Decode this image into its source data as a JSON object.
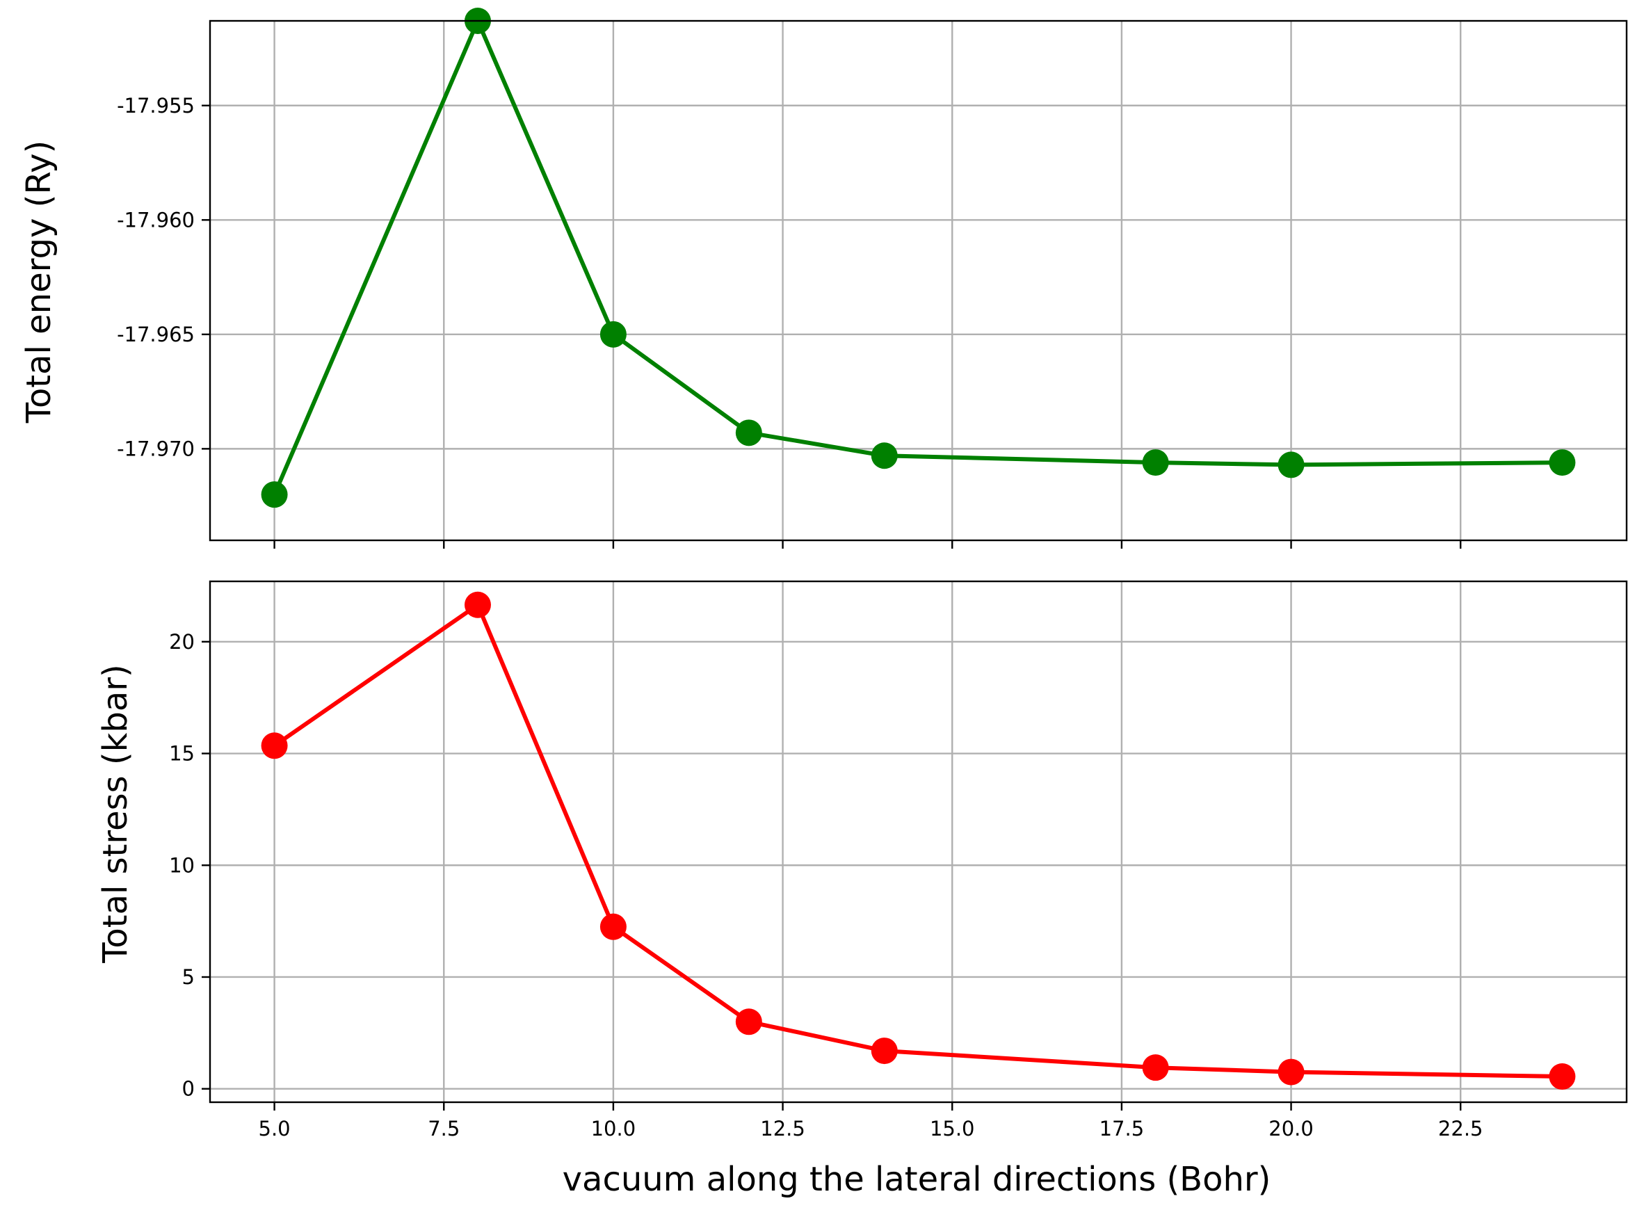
{
  "chart_data": [
    {
      "type": "line",
      "ylabel": "Total energy (Ry)",
      "xlabel": "",
      "color": "#008000",
      "grid": true,
      "xlim": [
        4.05,
        24.95
      ],
      "ylim": [
        -17.974,
        -17.9513
      ],
      "yticks": [
        -17.97,
        -17.965,
        -17.96,
        -17.955
      ],
      "ytick_labels": [
        "-17.970",
        "-17.965",
        "-17.960",
        "-17.955"
      ],
      "xticks": [
        5.0,
        7.5,
        10.0,
        12.5,
        15.0,
        17.5,
        20.0,
        22.5
      ],
      "xticks_labeled": false,
      "series": [
        {
          "x": [
            5,
            8,
            10,
            12,
            14,
            18,
            20,
            24
          ],
          "values": [
            -17.972,
            -17.9513,
            -17.965,
            -17.9693,
            -17.9703,
            -17.9706,
            -17.9707,
            -17.9706
          ]
        }
      ]
    },
    {
      "type": "line",
      "ylabel": "Total stress (kbar)",
      "xlabel": "vacuum along the lateral directions (Bohr)",
      "color": "#ff0000",
      "grid": true,
      "xlim": [
        4.05,
        24.95
      ],
      "ylim": [
        -0.6,
        22.7
      ],
      "yticks": [
        0,
        5,
        10,
        15,
        20
      ],
      "ytick_labels": [
        "0",
        "5",
        "10",
        "15",
        "20"
      ],
      "xticks": [
        5.0,
        7.5,
        10.0,
        12.5,
        15.0,
        17.5,
        20.0,
        22.5
      ],
      "xtick_labels": [
        "5.0",
        "7.5",
        "10.0",
        "12.5",
        "15.0",
        "17.5",
        "20.0",
        "22.5"
      ],
      "xticks_labeled": true,
      "series": [
        {
          "x": [
            5,
            8,
            10,
            12,
            14,
            18,
            20,
            24
          ],
          "values": [
            15.35,
            21.65,
            7.25,
            3.0,
            1.7,
            0.95,
            0.75,
            0.55
          ]
        }
      ]
    }
  ]
}
